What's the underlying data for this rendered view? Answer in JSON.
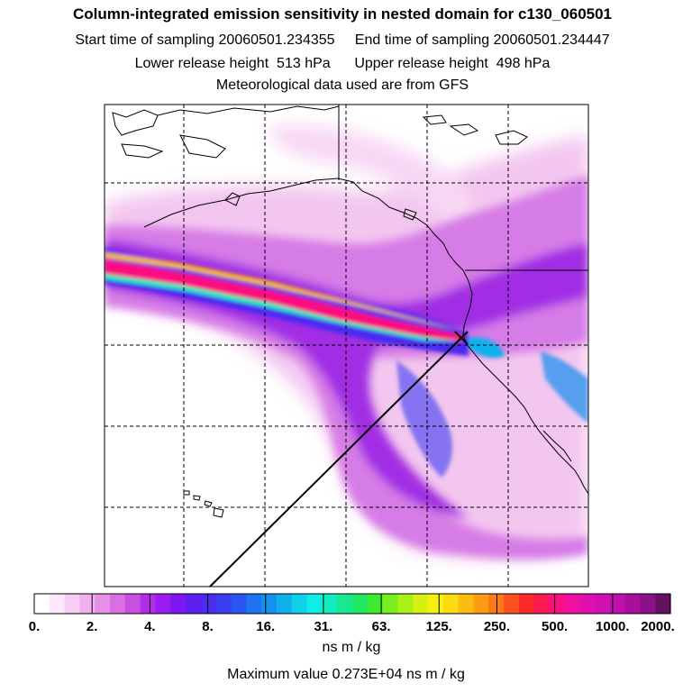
{
  "title": "Column-integrated emission sensitivity in nested domain for c130_060501",
  "sampling": {
    "start_label": "Start time of sampling",
    "start_value": "20060501.234355",
    "end_label": "End time of sampling",
    "end_value": "20060501.234447"
  },
  "release": {
    "lower_label": "Lower release height",
    "lower_value": "513 hPa",
    "upper_label": "Upper release height",
    "upper_value": "498 hPa"
  },
  "meteo_note": "Meteorological data used are from GFS",
  "colorbar": {
    "tick_labels": [
      "0.",
      "2.",
      "4.",
      "8.",
      "16.",
      "31.",
      "63.",
      "125.",
      "250.",
      "500.",
      "1000.",
      "2000."
    ],
    "units": "ns m / kg",
    "colors": [
      "#ffffff",
      "#fde8fb",
      "#f7cdf4",
      "#f0b0ee",
      "#e690e8",
      "#d86fe3",
      "#c84fe0",
      "#b22ee6",
      "#9a1cf0",
      "#7d18f2",
      "#5e1ff0",
      "#4a2bf0",
      "#3a3cf2",
      "#2b55f2",
      "#1f72f0",
      "#1690ee",
      "#10b0ec",
      "#10d0ea",
      "#10ece6",
      "#10ecc0",
      "#18e890",
      "#20e660",
      "#40ea30",
      "#78ee20",
      "#a8f018",
      "#d6f010",
      "#f4f010",
      "#fcdc10",
      "#fcbc10",
      "#fc9c10",
      "#fc7818",
      "#fc5020",
      "#fc2a28",
      "#fc1850",
      "#fc1080",
      "#f010a0",
      "#e010b0",
      "#d010b0",
      "#c010b0",
      "#a8109c",
      "#8c1088",
      "#641060"
    ]
  },
  "maximum": {
    "label": "Maximum value",
    "value": "0.273E+04",
    "units": "ns m / kg"
  }
}
